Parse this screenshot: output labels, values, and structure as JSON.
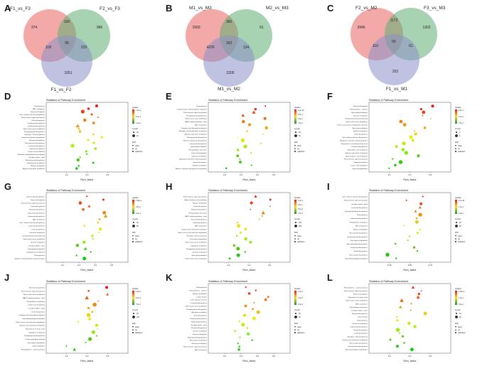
{
  "figure": {
    "panel_letters": [
      "A",
      "B",
      "C",
      "D",
      "E",
      "F",
      "G",
      "H",
      "I",
      "J",
      "K",
      "L"
    ],
    "venn": [
      {
        "letter": "A",
        "labels": [
          "F1_vs_F3",
          "F2_vs_F3",
          "F1_vs_F2"
        ],
        "regions": {
          "only1": "374",
          "only2": "966",
          "only3": "1051",
          "ab": "100",
          "ac": "118",
          "bc": "233",
          "abc": "95"
        }
      },
      {
        "letter": "B",
        "labels": [
          "M1_vs_M3",
          "M2_vs_M3",
          "M1_vs_M2"
        ],
        "regions": {
          "only1": "1560",
          "only2": "61",
          "only3": "2205",
          "ab": "360",
          "ac": "4226",
          "bc": "134",
          "abc": "163"
        }
      },
      {
        "letter": "C",
        "labels": [
          "F2_vs_M2",
          "F3_vs_M3",
          "F1_vs_M1"
        ],
        "regions": {
          "only1": "3946",
          "only2": "1302",
          "only3": "252",
          "ab": "1172",
          "ac": "110",
          "bc": "61",
          "abc": "56"
        }
      }
    ],
    "panel_common": {
      "title": "Statistics of Pathway Enrichment",
      "xlabel": "Rich_factor",
      "legend_qvalue": "qvalue",
      "legend_count": "Count",
      "legend_diff": "Diff",
      "legend_diff_items": [
        "down",
        "up",
        "up&down"
      ]
    }
  },
  "chart_data": [
    {
      "panel": "D",
      "type": "scatter",
      "title": "Statistics of Pathway Enrichment",
      "xlabel": "Rich_factor",
      "qvalue_ticks": [
        "1.0e-4",
        "5.0e-3",
        "1.0e-2"
      ],
      "count_ticks": [
        "20",
        "40"
      ],
      "xticks": [
        "0.2",
        "0.4",
        "0.6"
      ],
      "pathways": [
        "Photosynthesis",
        "ABC transporters",
        "Fatty acid elongation",
        "Cutin, suberine and wax biosynthesis",
        "Plant hormone signal transduction",
        "Zeatin biosynthesis",
        "Isoflavonoid biosynthesis",
        "Diterpenoid biosynthesis",
        "Starch and sucrose metabolism",
        "Phenylpropanoid biosynthesis",
        "Glycolysis / Gluconeogenesis",
        "Limonene and pinene degradation",
        "Flavonoid biosynthesis",
        "Brassinosteroid biosynthesis",
        "Carotenoid biosynthesis",
        "Galactose metabolism",
        "Linoleic acid metabolism",
        "Stilbenoid, diarylheptanoid and gingerol",
        "Circadian rhythm - plant",
        "Monoterpenoid biosynthesis",
        "Phenylalanine metabolism",
        "Nitrogen metabolism",
        "Arginine and proline metabolism"
      ]
    },
    {
      "panel": "E",
      "type": "scatter",
      "title": "Statistics of Pathway Enrichment",
      "xlabel": "Rich_factor",
      "qvalue_ticks": [
        "1.0e-16",
        "2.5e-1",
        "5.0e-1",
        "7.5e-1"
      ],
      "count_ticks": [
        "30",
        "60"
      ],
      "xticks": [
        "0.2",
        "0.4",
        "0.6",
        "0.8"
      ],
      "pathways": [
        "Photosynthesis",
        "Carbon fixation in photosynthetic organisms",
        "Plant hormone signal transduction",
        "Phenylpropanoid biosynthesis",
        "Starch and sucrose metabolism",
        "MAPK signaling pathway - plant",
        "ABC transporters",
        "Porphyrin and chlorophyll metabolism",
        "Glyoxylate and dicarboxylate metabolism",
        "Arginine and proline metabolism",
        "Brassinosteroid biosynthesis",
        "Flavone and flavonol biosynthesis",
        "Isoflavonoid biosynthesis",
        "Glycerolipid metabolism",
        "Plant-pathogen interaction",
        "Fatty acid degradation",
        "Galactose metabolism",
        "Ubiquinone and other terpenoid-quinone",
        "Steroid biosynthesis",
        "Histidine metabolism",
        "Alanine, aspartate and glutamate metabolism"
      ]
    },
    {
      "panel": "F",
      "type": "scatter",
      "title": "Statistics of Pathway Enrichment",
      "xlabel": "Rich_factor",
      "qvalue_ticks": [
        "2.5e-1",
        "5.0e-1",
        "7.5e-1"
      ],
      "count_ticks": [
        "2",
        "4"
      ],
      "xticks": [
        "0.1",
        "0.2",
        "0.3"
      ],
      "pathways": [
        "Fatty acid elongation",
        "Photosynthesis - antenna",
        "Glycerolipid metabolism",
        "Tyrosine metabolism",
        "Sesquiterpenoid and triterpenoid",
        "Starch and sucrose metabolism",
        "Protein processing in endoplasmic reticulum",
        "Ether lipid metabolism",
        "Histidine metabolism",
        "Zeatin biosynthesis",
        "Cutin, suberine and wax biosynthesis",
        "Ubiquinone and other terpenoid-quinone",
        "Biosynthesis of unsaturated fatty acids",
        "Carotenoid biosynthesis",
        "Arachidonic acid metabolism",
        "Arginine and proline metabolism",
        "alpha-Linolenic acid metabolism",
        "Plant hormone signal transduction",
        "Steroid biosynthesis",
        "Linoleic acid metabolism",
        "Fatty acid degradation"
      ]
    },
    {
      "panel": "G",
      "type": "scatter",
      "title": "Statistics of Pathway Enrichment",
      "xlabel": "Rich_factor",
      "qvalue_ticks": [
        "1.00e-4",
        "2.5e-1",
        "5.0e-1"
      ],
      "count_ticks": [
        "40",
        "80"
      ],
      "xticks": [
        "0.2",
        "0.4",
        "0.6",
        "0.8"
      ],
      "pathways": [
        "Glucosinolate biosynthesis",
        "Fatty acid elongation",
        "Plant hormone signal transduction",
        "Steroid biosynthesis",
        "Flavonoid biosynthesis",
        "Isoflavonoid biosynthesis",
        "Diterpenoid biosynthesis",
        "ABC transporters",
        "Cutin, suberine and wax biosynthesis",
        "Carotenoid biosynthesis",
        "Zeatin biosynthesis",
        "Galactose metabolism",
        "Sesquiterpenoid and triterpenoid",
        "Starch and sucrose metabolism",
        "Tyrosine metabolism",
        "Circadian rhythm - plant",
        "Sphingolipid metabolism",
        "Phenylalanine metabolism",
        "Photosynthesis",
        "Synthesis and degradation of ketone bodies"
      ]
    },
    {
      "panel": "H",
      "type": "scatter",
      "title": "Statistics of Pathway Enrichment",
      "xlabel": "Rich_factor",
      "qvalue_ticks": [
        "1.0e-4",
        "2.5e-1",
        "5.0e-1",
        "7.5e-1"
      ],
      "count_ticks": [
        "100",
        "200"
      ],
      "xticks": [
        "0.2",
        "0.4",
        "0.6"
      ],
      "pathways": [
        "Plant hormone signal transduction",
        "Alpha-Linolenic acid metabolism",
        "Nitrogen metabolism",
        "Zeatin biosynthesis",
        "Stilbenoid biosynthesis",
        "Plant-pathogen interaction",
        "MAPK signaling pathway - plant",
        "Flavonoid biosynthesis",
        "Steroid biosynthesis",
        "ABC transporters",
        "Cysteine and methionine metabolism",
        "Valine, leucine and isoleucine degradation",
        "Glycolysis / Gluconeogenesis",
        "Other glycan degradation",
        "Starch and sucrose metabolism",
        "Tryptophan metabolism",
        "Phenylpropanoid biosynthesis",
        "Pyruvate metabolism",
        "Ether lipid metabolism",
        "Starch and sucrose metabolism"
      ]
    },
    {
      "panel": "I",
      "type": "scatter",
      "title": "Statistics of Pathway Enrichment",
      "xlabel": "Rich_factor",
      "qvalue_ticks": [
        "1.0e-10",
        "1.0e-1",
        "2.0e-1"
      ],
      "count_ticks": [
        "40",
        "80"
      ],
      "xticks": [
        "0.25",
        "0.50",
        "0.75"
      ],
      "pathways": [
        "Cutin, suberine and wax biosynthesis",
        "Plant hormone signal transduction",
        "Circadian rhythm - plant",
        "Carotenoid biosynthesis",
        "Terpenoid backbone biosynthesis",
        "Photosynthesis",
        "Isoflavonoid biosynthesis",
        "Phenylalanine metabolism",
        "ABC transporters",
        "Fatty acid elongation",
        "Glucosinolate biosynthesis",
        "Sesquiterpenoid biosynthesis",
        "Other glycan degradation",
        "Glycosphingolipid biosynthesis",
        "Diterpenoid biosynthesis",
        "Steroid biosynthesis",
        "Glucosinolate biosynthesis",
        "Glycerophospholipid metabolism"
      ]
    },
    {
      "panel": "J",
      "type": "scatter",
      "title": "Statistics of Pathway Enrichment",
      "xlabel": "Rich_factor",
      "qvalue_ticks": [
        "2.5e-3",
        "5.0e-3",
        "7.5e-3"
      ],
      "count_ticks": [
        "50",
        "100"
      ],
      "xticks": [
        "0.2",
        "0.4",
        "0.6"
      ],
      "pathways": [
        "Flavonoid biosynthesis",
        "Plant hormone signal transduction",
        "Starch and sucrose metabolism",
        "MAPK signaling pathway - plant",
        "Phenylalanine metabolism",
        "Linoleic acid metabolism",
        "Circadian rhythm - plant",
        "Zeatin biosynthesis",
        "Porphyrin and chlorophyll metabolism",
        "Glycerophospholipid metabolism",
        "Valine, leucine and isoleucine degradation",
        "Cysteine and methionine metabolism",
        "Biosynthesis of amino acids",
        "Tryptophan metabolism",
        "Phenylpropanoid biosynthesis",
        "Pentose phosphate pathway",
        "Other glycan degradation",
        "Sulfur metabolism",
        "Photosynthesis - antenna proteins"
      ]
    },
    {
      "panel": "K",
      "type": "scatter",
      "title": "Statistics of Pathway Enrichment",
      "xlabel": "Rich_factor",
      "qvalue_ticks": [
        "1.0e-3",
        "2.0e-3",
        "3.0e-3"
      ],
      "count_ticks": [
        "25",
        "50"
      ],
      "xticks": [
        "0.2",
        "0.4",
        "0.6",
        "0.8"
      ],
      "pathways": [
        "Photosynthesis",
        "Photosynthesis - antenna",
        "Nitrogen metabolism",
        "Carbon fixation",
        "Cutin, suberine and wax",
        "Carotenoid biosynthesis",
        "Starch and sucrose metabolism",
        "Phenylpropanoid biosynthesis",
        "Glyoxylate metabolism",
        "Zeatin biosynthesis",
        "Diterpenoid biosynthesis",
        "Stilbenoid biosynthesis",
        "Circadian rhythm - plant",
        "Flavonoid biosynthesis",
        "Tyrosine metabolism",
        "Fatty acid elongation",
        "Monoterpenoid biosynthesis",
        "Beta-alanine metabolism",
        "Galactose metabolism",
        "Plant hormone signal transduction",
        "ABC transporters"
      ]
    },
    {
      "panel": "L",
      "type": "scatter",
      "title": "Statistics of Pathway Enrichment",
      "xlabel": "Rich_factor",
      "qvalue_ticks": [
        "1.00e-4",
        "1.0e-1",
        "2.0e-1"
      ],
      "count_ticks": [
        "40",
        "80"
      ],
      "xticks": [
        "0.2",
        "0.4",
        "0.6"
      ],
      "pathways": [
        "Photosynthesis - antenna proteins",
        "Plant hormone signal transduction",
        "Fatty acid elongation",
        "Biosynthesis of amino acids",
        "Starch and sucrose metabolism",
        "ABC transporters",
        "Plant-pathogen interaction",
        "Circadian rhythm - plant",
        "Flavonoid biosynthesis",
        "Carbon fixation",
        "Photosynthesis",
        "Galactose metabolism",
        "Isoflavonoid biosynthesis",
        "Steroid biosynthesis",
        "Zeatin biosynthesis",
        "Glycolysis / Gluconeogenesis",
        "Cysteine and methionine metabolism",
        "Glucosinolate biosynthesis",
        "Monoterpenoid biosynthesis",
        "Glycosaminoglycan degradation"
      ]
    }
  ]
}
